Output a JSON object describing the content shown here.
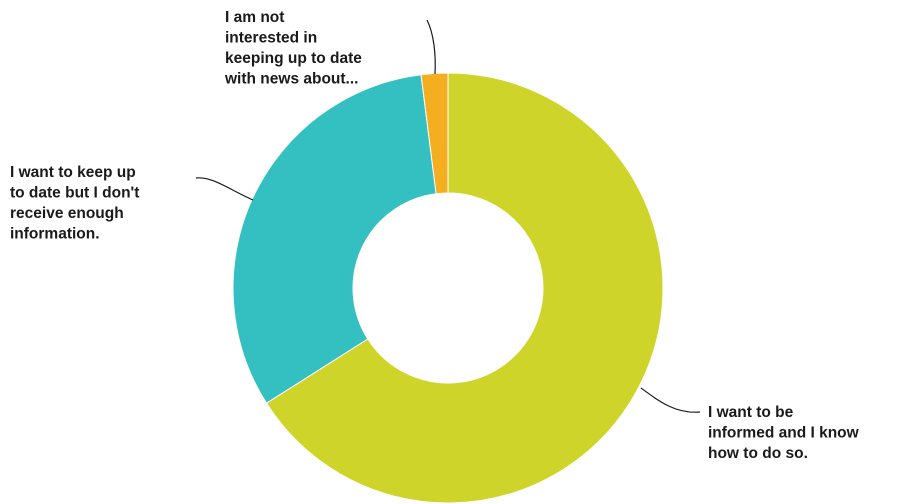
{
  "chart_data": {
    "type": "pie",
    "variant": "donut",
    "title": "",
    "legend": "none",
    "slices": [
      {
        "label_lines": [
          "I want to be",
          "informed and I know",
          "how to do so."
        ],
        "value": 66,
        "color": "#cfd42a"
      },
      {
        "label_lines": [
          "I want to keep up",
          "to date but I don't",
          "receive enough",
          "information."
        ],
        "value": 32,
        "color": "#34bfc0"
      },
      {
        "label_lines": [
          "I am not",
          "interested in",
          "keeping up to date",
          "with news about..."
        ],
        "value": 2,
        "color": "#f4ae1f"
      }
    ]
  }
}
